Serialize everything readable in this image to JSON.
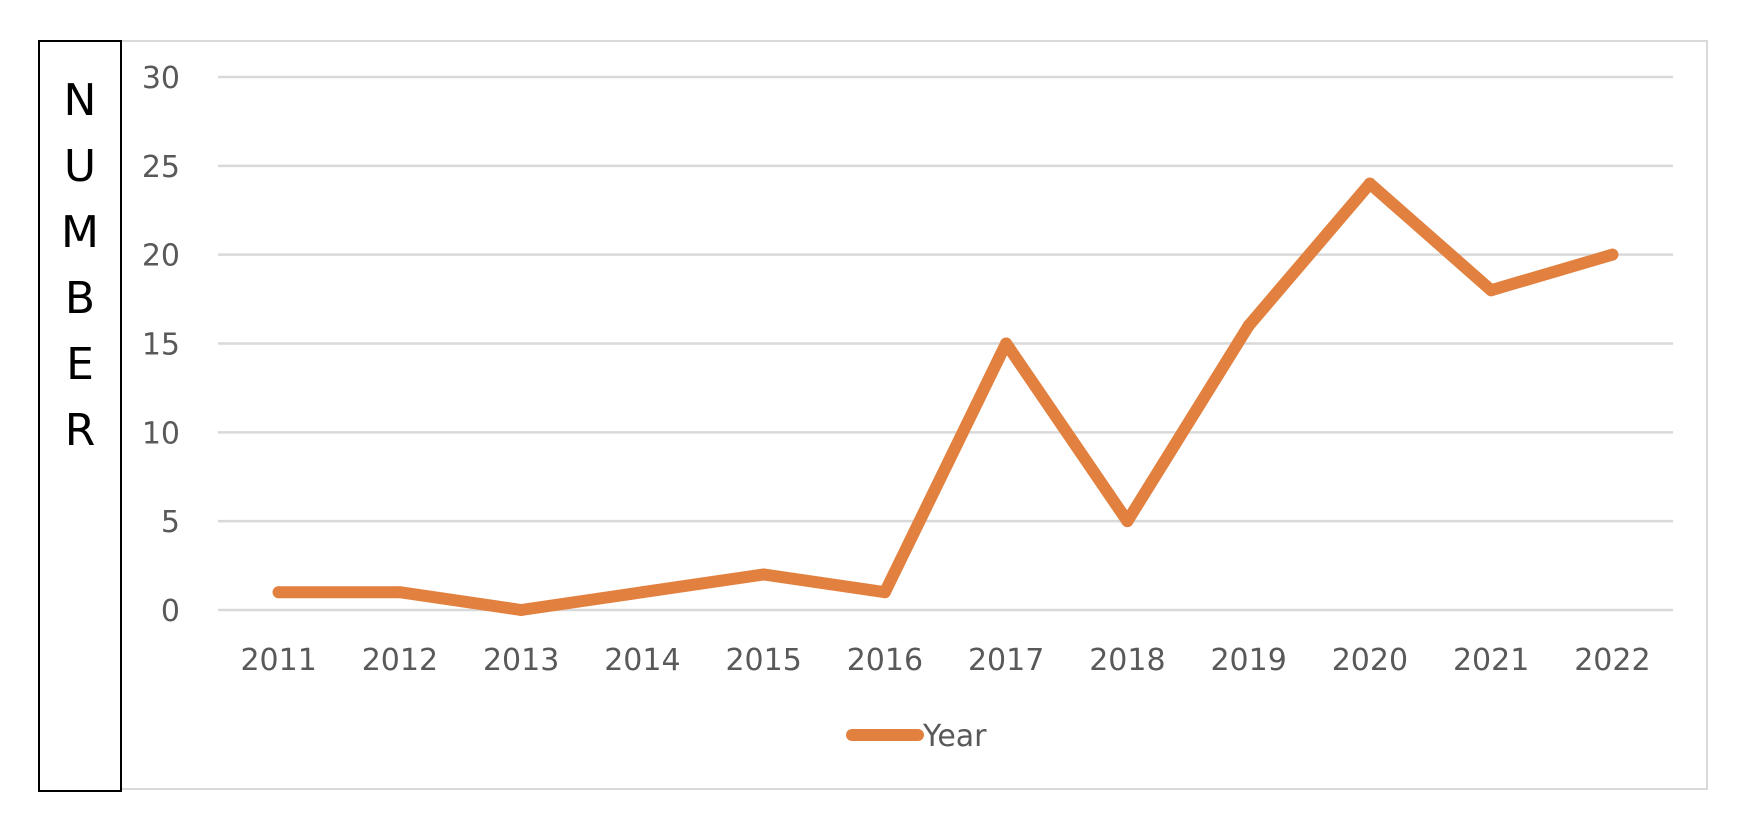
{
  "chart_data": {
    "type": "line",
    "ylabel": "NUMBER",
    "xlabel": "",
    "categories": [
      "2011",
      "2012",
      "2013",
      "2014",
      "2015",
      "2016",
      "2017",
      "2018",
      "2019",
      "2020",
      "2021",
      "2022"
    ],
    "series": [
      {
        "name": "Year",
        "color": "#E2813F",
        "values": [
          1,
          1,
          0,
          1,
          2,
          1,
          15,
          5,
          16,
          24,
          18,
          20
        ]
      }
    ],
    "ylim": [
      0,
      30
    ],
    "yticks": [
      "0",
      "5",
      "10",
      "15",
      "20",
      "25",
      "30"
    ],
    "grid": true,
    "legend_position": "bottom"
  }
}
